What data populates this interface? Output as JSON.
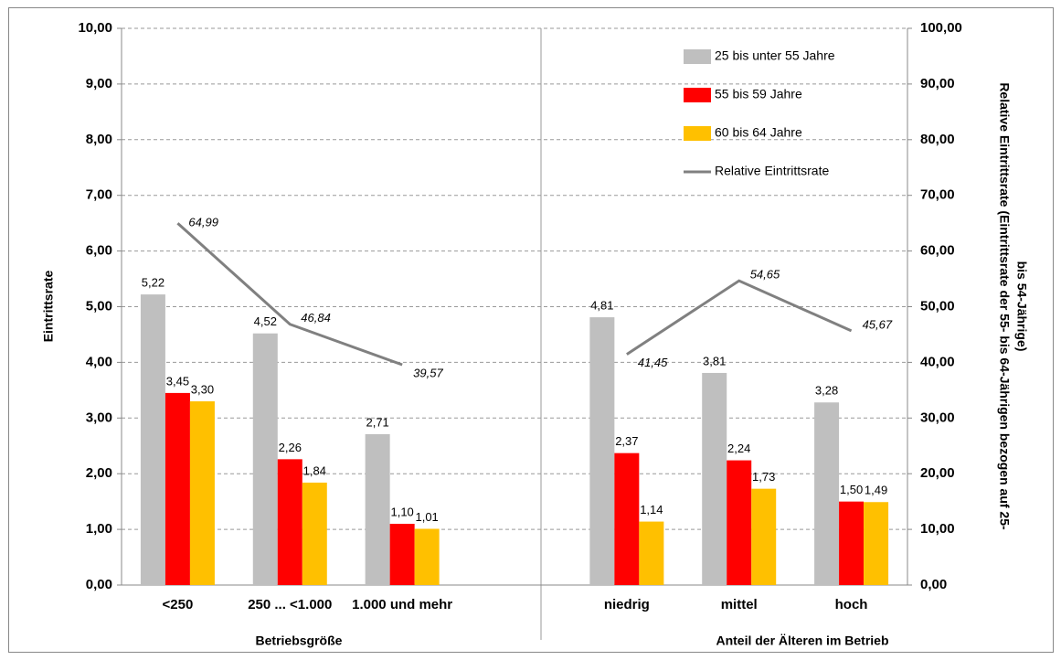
{
  "chart_data": {
    "type": "bar",
    "categories": [
      "<250",
      "250 ... <1.000",
      "1.000 und mehr",
      null,
      "niedrig",
      "mittel",
      "hoch"
    ],
    "annotations": [
      "Betriebsgröße",
      "Anteil der Älteren im Betrieb"
    ],
    "ylabel": "Eintrittsrate",
    "y2label": [
      "Relative Eintrittsrate (Eintrittsrate der 55- bis 64-Jährigen bezogen auf 25-",
      "bis 54-Jährige)"
    ],
    "ylim": [
      0,
      10
    ],
    "yticks": [
      {
        "value": 0,
        "label": "0,00"
      },
      {
        "value": 1,
        "label": "1,00"
      },
      {
        "value": 2,
        "label": "2,00"
      },
      {
        "value": 3,
        "label": "3,00"
      },
      {
        "value": 4,
        "label": "4,00"
      },
      {
        "value": 5,
        "label": "5,00"
      },
      {
        "value": 6,
        "label": "6,00"
      },
      {
        "value": 7,
        "label": "7,00"
      },
      {
        "value": 8,
        "label": "8,00"
      },
      {
        "value": 9,
        "label": "9,00"
      },
      {
        "value": 10,
        "label": "10,00"
      }
    ],
    "y2lim": [
      0,
      100
    ],
    "y2ticks": [
      {
        "value": 0,
        "label": "0,00"
      },
      {
        "value": 10,
        "label": "10,00"
      },
      {
        "value": 20,
        "label": "20,00"
      },
      {
        "value": 30,
        "label": "30,00"
      },
      {
        "value": 40,
        "label": "40,00"
      },
      {
        "value": 50,
        "label": "50,00"
      },
      {
        "value": 60,
        "label": "60,00"
      },
      {
        "value": 70,
        "label": "70,00"
      },
      {
        "value": 80,
        "label": "80,00"
      },
      {
        "value": 90,
        "label": "90,00"
      },
      {
        "value": 100,
        "label": "100,00"
      }
    ],
    "grid": true,
    "series": [
      {
        "name": "25 bis unter 55 Jahre",
        "color": "#bfbfbf",
        "type": "bar",
        "values": [
          5.22,
          4.52,
          2.71,
          null,
          4.81,
          3.81,
          3.28
        ],
        "value_labels": [
          "5,22",
          "4,52",
          "2,71",
          null,
          "4,81",
          "3,81",
          "3,28"
        ]
      },
      {
        "name": "55 bis 59 Jahre",
        "color": "#ff0000",
        "type": "bar",
        "values": [
          3.45,
          2.26,
          1.1,
          null,
          2.37,
          2.24,
          1.5
        ],
        "value_labels": [
          "3,45",
          "2,26",
          "1,10",
          null,
          "2,37",
          "2,24",
          "1,50"
        ]
      },
      {
        "name": "60 bis 64 Jahre",
        "color": "#ffc000",
        "type": "bar",
        "values": [
          3.3,
          1.84,
          1.01,
          null,
          1.14,
          1.73,
          1.49
        ],
        "value_labels": [
          "3,30",
          "1,84",
          "1,01",
          null,
          "1,14",
          "1,73",
          "1,49"
        ]
      },
      {
        "name": "Relative Eintrittsrate",
        "color": "#808080",
        "type": "line",
        "axis": "y2",
        "values": [
          64.99,
          46.84,
          39.57,
          null,
          41.45,
          54.65,
          45.67
        ],
        "value_labels": [
          "64,99",
          "46,84",
          "39,57",
          null,
          "41,45",
          "54,65",
          "45,67"
        ]
      }
    ]
  }
}
